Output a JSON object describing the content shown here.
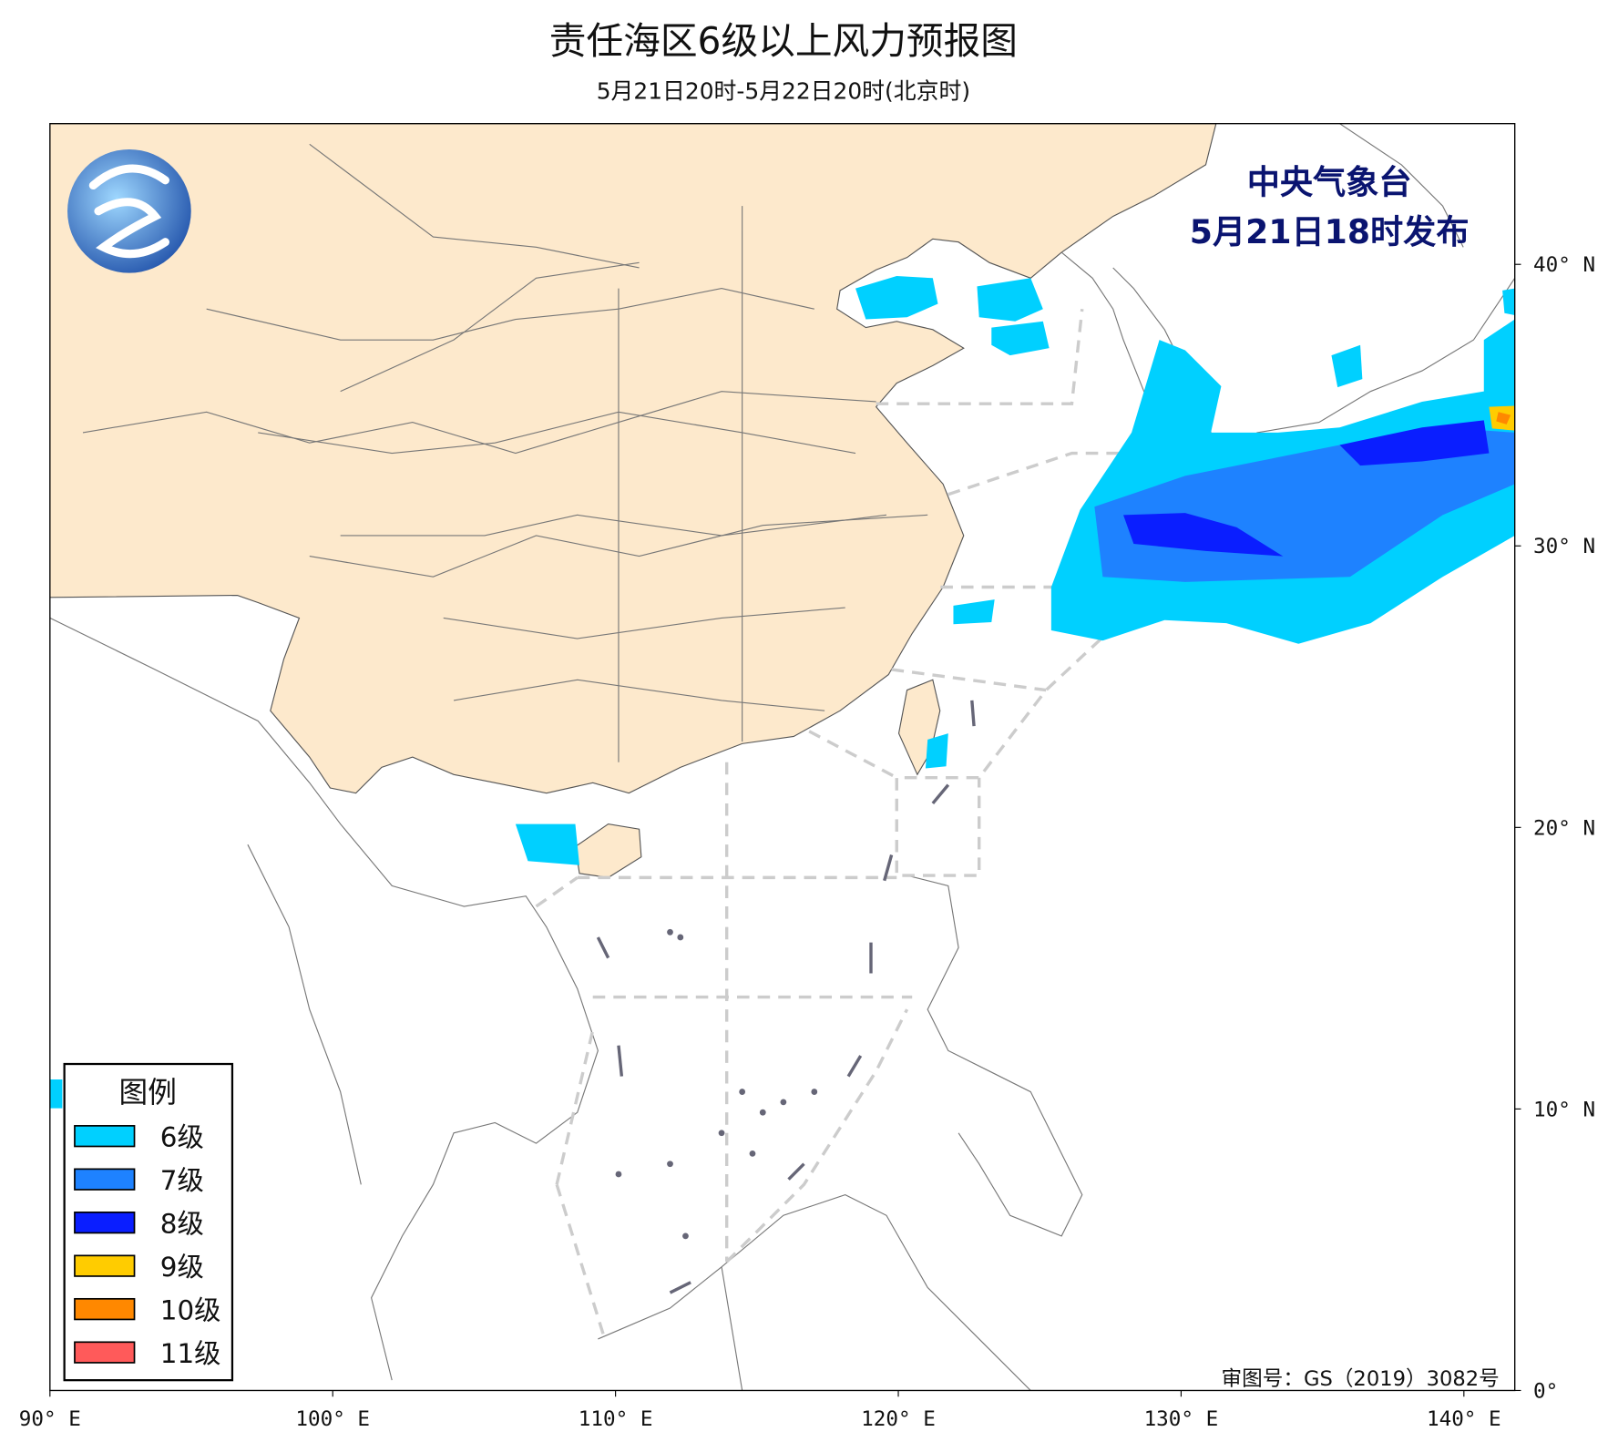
{
  "header": {
    "title": "责任海区6级以上风力预报图",
    "subtitle": "5月21日20时-5月22日20时(北京时)"
  },
  "issuer": {
    "agency": "中央气象台",
    "issued": "5月21日18时发布"
  },
  "map": {
    "xlim": [
      90,
      141.8
    ],
    "ylim": [
      0,
      45
    ],
    "xticks": [
      {
        "value": 90,
        "label": "90° E"
      },
      {
        "value": 100,
        "label": "100° E"
      },
      {
        "value": 110,
        "label": "110° E"
      },
      {
        "value": 120,
        "label": "120° E"
      },
      {
        "value": 130,
        "label": "130° E"
      },
      {
        "value": 140,
        "label": "140° E"
      }
    ],
    "yticks": [
      {
        "value": 0,
        "label": "0°"
      },
      {
        "value": 10,
        "label": "10° N"
      },
      {
        "value": 20,
        "label": "20° N"
      },
      {
        "value": 30,
        "label": "30° N"
      },
      {
        "value": 40,
        "label": "40° N"
      }
    ]
  },
  "legend": {
    "title": "图例",
    "items": [
      {
        "label": "6级",
        "color": "#00d0ff"
      },
      {
        "label": "7级",
        "color": "#1e82ff"
      },
      {
        "label": "8级",
        "color": "#0a1eff"
      },
      {
        "label": "9级",
        "color": "#ffcc00"
      },
      {
        "label": "10级",
        "color": "#ff8800"
      },
      {
        "label": "11级",
        "color": "#ff5a5a"
      }
    ]
  },
  "footer": {
    "approval": "审图号：GS（2019）3082号"
  }
}
